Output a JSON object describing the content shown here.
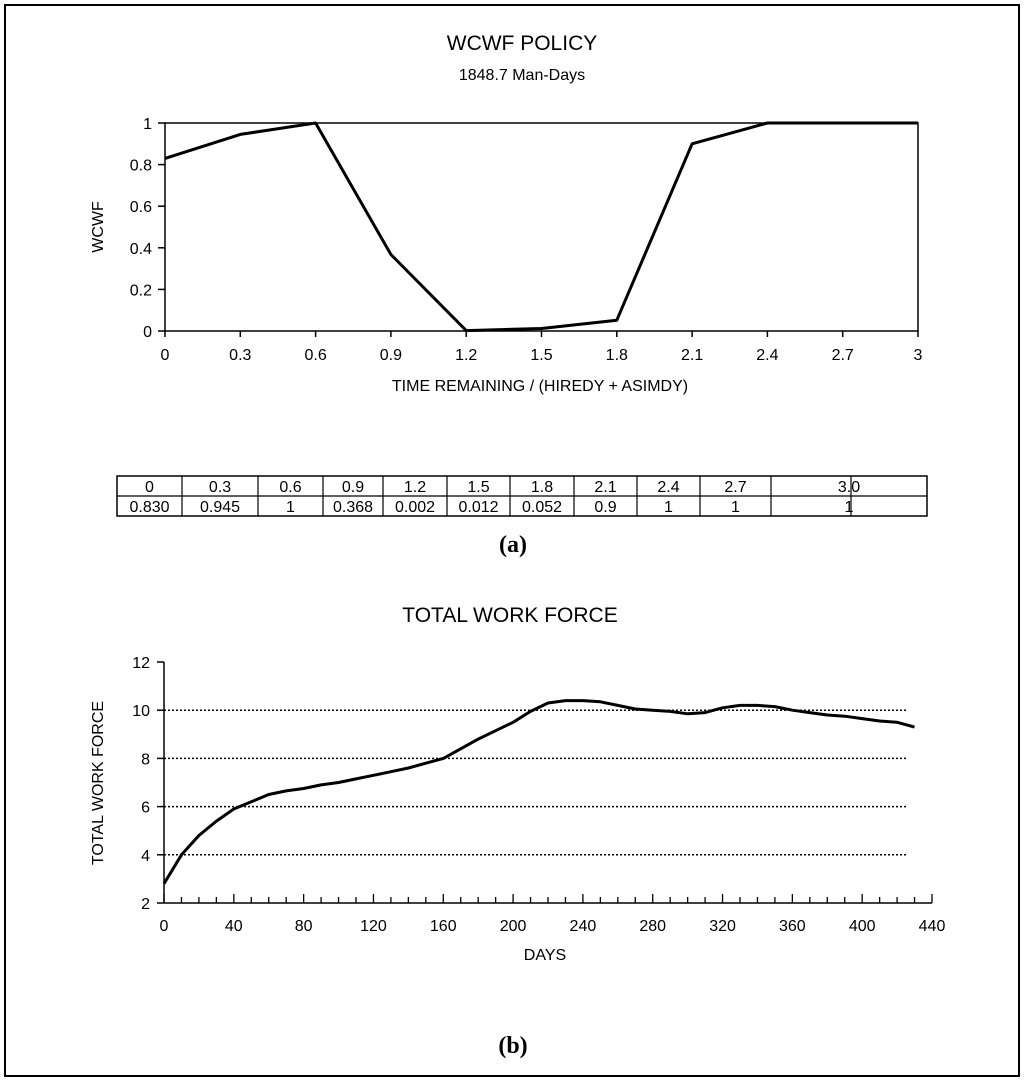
{
  "chart_data": [
    {
      "type": "line",
      "title": "WCWF POLICY",
      "subtitle": "1848.7 Man-Days",
      "xlabel": "TIME REMAINING / (HIREDY + ASIMDY)",
      "ylabel": "WCWF",
      "xlim": [
        0,
        3
      ],
      "ylim": [
        0,
        1
      ],
      "x_ticks": [
        "0",
        "0.3",
        "0.6",
        "0.9",
        "1.2",
        "1.5",
        "1.8",
        "2.1",
        "2.4",
        "2.7",
        "3"
      ],
      "y_ticks": [
        "0",
        "0.2",
        "0.4",
        "0.6",
        "0.8",
        "1"
      ],
      "grid": false,
      "x": [
        0,
        0.3,
        0.6,
        0.9,
        1.2,
        1.5,
        1.8,
        2.1,
        2.4,
        2.7,
        3.0
      ],
      "y": [
        0.83,
        0.945,
        1,
        0.368,
        0.002,
        0.012,
        0.052,
        0.9,
        1,
        1,
        1
      ],
      "color": "#000000",
      "table": {
        "x_row": [
          "0",
          "0.3",
          "0.6",
          "0.9",
          "1.2",
          "1.5",
          "1.8",
          "2.1",
          "2.4",
          "2.7",
          "3.0"
        ],
        "y_row": [
          "0.830",
          "0.945",
          "1",
          "0.368",
          "0.002",
          "0.012",
          "0.052",
          "0.9",
          "1",
          "1",
          "1"
        ]
      },
      "panel_label": "(a)"
    },
    {
      "type": "line",
      "title": "TOTAL WORK FORCE",
      "xlabel": "DAYS",
      "ylabel": "TOTAL WORK FORCE",
      "xlim": [
        0,
        440
      ],
      "ylim": [
        2,
        12
      ],
      "x_ticks": [
        "0",
        "40",
        "80",
        "120",
        "160",
        "200",
        "240",
        "280",
        "320",
        "360",
        "400",
        "440"
      ],
      "y_ticks": [
        "2",
        "4",
        "6",
        "8",
        "10",
        "12"
      ],
      "grid": true,
      "x": [
        0,
        10,
        20,
        30,
        40,
        50,
        60,
        70,
        80,
        90,
        100,
        110,
        120,
        130,
        140,
        150,
        160,
        170,
        180,
        190,
        200,
        210,
        220,
        230,
        240,
        250,
        260,
        270,
        280,
        290,
        300,
        310,
        320,
        330,
        340,
        350,
        360,
        370,
        380,
        390,
        400,
        410,
        420,
        430
      ],
      "y": [
        2.8,
        4.0,
        4.8,
        5.4,
        5.9,
        6.2,
        6.5,
        6.65,
        6.75,
        6.9,
        7.0,
        7.15,
        7.3,
        7.45,
        7.6,
        7.8,
        8.0,
        8.4,
        8.8,
        9.15,
        9.5,
        9.95,
        10.3,
        10.4,
        10.4,
        10.35,
        10.2,
        10.05,
        10.0,
        9.95,
        9.85,
        9.9,
        10.1,
        10.2,
        10.2,
        10.15,
        10.0,
        9.9,
        9.8,
        9.75,
        9.65,
        9.55,
        9.5,
        9.3
      ],
      "color": "#000000",
      "panel_label": "(b)"
    }
  ]
}
